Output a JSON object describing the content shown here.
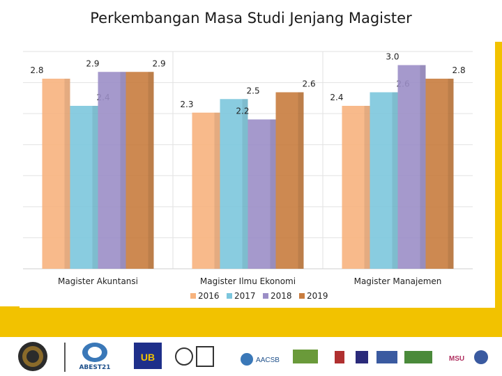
{
  "slide": {
    "title": "Perkembangan Masa Studi Jenjang Magister"
  },
  "colors": {
    "accent": "#f2c200",
    "2016": "#f7b37e",
    "2017": "#7cc6dd",
    "2018": "#9b8ec6",
    "2019": "#c87c3e"
  },
  "chart_data": {
    "type": "bar",
    "categories": [
      "Magister Akuntansi",
      "Magister Ilmu Ekonomi",
      "Magister Manajemen"
    ],
    "series": [
      {
        "name": "2016",
        "values": [
          2.8,
          2.3,
          2.4
        ]
      },
      {
        "name": "2017",
        "values": [
          2.4,
          2.5,
          2.6
        ]
      },
      {
        "name": "2018",
        "values": [
          2.9,
          2.2,
          3.0
        ]
      },
      {
        "name": "2019",
        "values": [
          2.9,
          2.6,
          2.8
        ]
      }
    ],
    "title": "",
    "xlabel": "",
    "ylabel": "",
    "ylim": [
      0,
      3.2
    ],
    "grid": true,
    "legend_position": "bottom"
  },
  "logos": [
    {
      "icon": "university-seal-icon"
    },
    {
      "icon": "abest21-logo-icon",
      "text": "ABEST21"
    },
    {
      "icon": "ub-logo-icon",
      "text": "UB"
    },
    {
      "icon": "iso-certification-icon"
    },
    {
      "icon": "aacsb-logo-icon",
      "text": "AACSB"
    },
    {
      "icon": "partner-logos-icon",
      "text": "MSU"
    }
  ]
}
